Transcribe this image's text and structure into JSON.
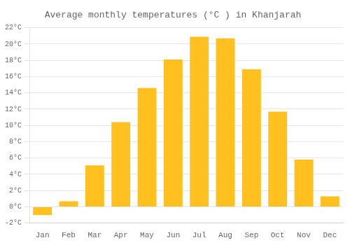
{
  "chart_data": {
    "type": "bar",
    "title": "Average monthly temperatures (°C ) in Khanjarah",
    "categories": [
      "Jan",
      "Feb",
      "Mar",
      "Apr",
      "May",
      "Jun",
      "Jul",
      "Aug",
      "Sep",
      "Oct",
      "Nov",
      "Dec"
    ],
    "values": [
      -1.0,
      0.7,
      5.1,
      10.4,
      14.6,
      18.1,
      20.9,
      20.7,
      16.9,
      11.7,
      5.8,
      1.3
    ],
    "color": "#FFC020",
    "ylim": [
      -2,
      22
    ],
    "yticks": [
      {
        "value": -2,
        "label": "-2°C"
      },
      {
        "value": 0,
        "label": "0°C"
      },
      {
        "value": 2,
        "label": "2°C"
      },
      {
        "value": 4,
        "label": "4°C"
      },
      {
        "value": 6,
        "label": "6°C"
      },
      {
        "value": 8,
        "label": "8°C"
      },
      {
        "value": 10,
        "label": "10°C"
      },
      {
        "value": 12,
        "label": "12°C"
      },
      {
        "value": 14,
        "label": "14°C"
      },
      {
        "value": 16,
        "label": "16°C"
      },
      {
        "value": 18,
        "label": "18°C"
      },
      {
        "value": 20,
        "label": "20°C"
      },
      {
        "value": 22,
        "label": "22°C"
      }
    ],
    "grid": true
  }
}
